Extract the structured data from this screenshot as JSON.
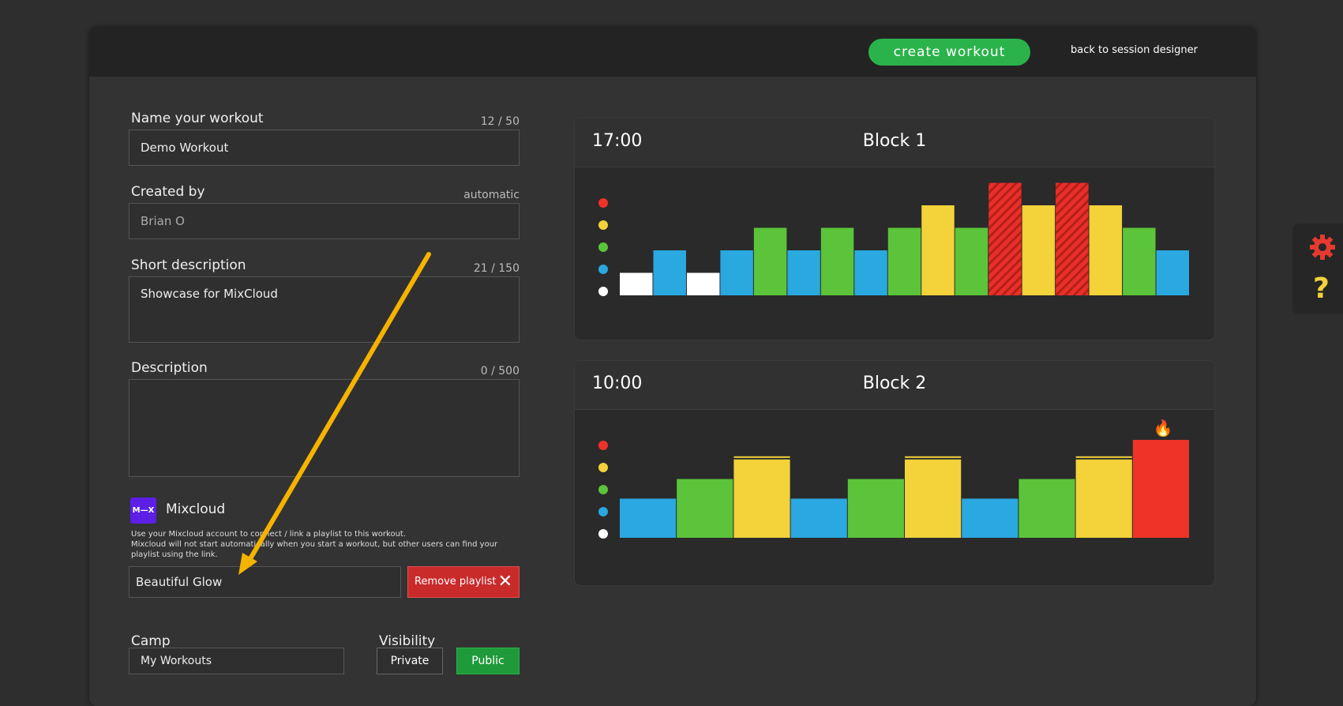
{
  "header": {
    "create_label": "create workout",
    "back_label": "back to session designer"
  },
  "form": {
    "name": {
      "label": "Name your workout",
      "count": "12 / 50",
      "value": "Demo Workout"
    },
    "created_by": {
      "label": "Created by",
      "count": "automatic",
      "value": "Brian O"
    },
    "short_desc": {
      "label": "Short description",
      "count": "21 / 150",
      "value": "Showcase for MixCloud"
    },
    "description": {
      "label": "Description",
      "count": "0 / 500",
      "value": ""
    },
    "mixcloud": {
      "logo": "M—X",
      "title": "Mixcloud",
      "text1": "Use your Mixcloud account to connect / link a playlist to this workout.",
      "text2": "Mixcloud will not start automatically when you start a workout, but other users can find your playlist using the link.",
      "playlist": "Beautiful Glow",
      "remove_label": "Remove playlist"
    },
    "camp": {
      "label": "Camp",
      "value": "My Workouts"
    },
    "visibility": {
      "label": "Visibility",
      "private": "Private",
      "public": "Public"
    }
  },
  "blocks": [
    {
      "time": "17:00",
      "title": "Block 1"
    },
    {
      "time": "10:00",
      "title": "Block 2"
    }
  ],
  "chart_data": [
    {
      "type": "bar",
      "title": "Block 1",
      "zones": [
        "white",
        "blue",
        "green",
        "yellow",
        "red"
      ],
      "values": [
        1,
        2,
        1,
        2,
        3,
        2,
        3,
        2,
        3,
        4,
        3,
        5,
        4,
        5,
        4,
        3,
        2
      ],
      "hatched": [
        11,
        13
      ]
    },
    {
      "type": "bar",
      "title": "Block 2",
      "zones": [
        "white",
        "blue",
        "green",
        "yellow",
        "red"
      ],
      "values": [
        2,
        3,
        4,
        2,
        3,
        4,
        2,
        3,
        4,
        5
      ],
      "flame_on": [
        9
      ]
    }
  ],
  "colors": {
    "white": "#ffffff",
    "blue": "#2aa8e0",
    "green": "#5cc43a",
    "yellow": "#f3d23a",
    "red": "#ee3328",
    "accent": "#2bb34b",
    "arrow": "#f5b300"
  }
}
